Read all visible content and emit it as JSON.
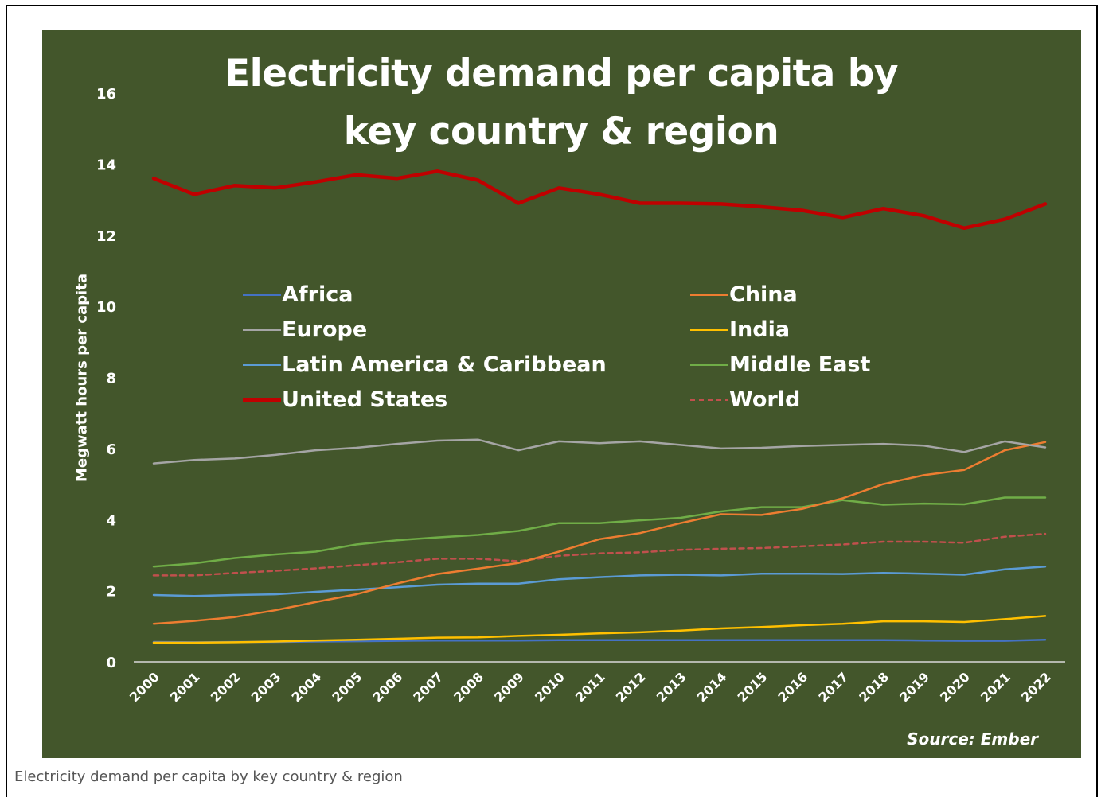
{
  "caption": "Electricity demand per capita by key country & region",
  "chart_data": {
    "type": "line",
    "title": "Electricity demand per capita by key country & region",
    "ylabel": "Megwatt hours per capita",
    "xlabel": "",
    "source": "Source: Ember",
    "ylim": [
      0,
      16
    ],
    "yticks": [
      0,
      2,
      4,
      6,
      8,
      10,
      12,
      14,
      16
    ],
    "grid": false,
    "legend_position": "upper-middle, two columns",
    "background_color": "#43562b",
    "x": [
      "2000",
      "2001",
      "2002",
      "2003",
      "2004",
      "2005",
      "2006",
      "2007",
      "2008",
      "2009",
      "2010",
      "2011",
      "2012",
      "2013",
      "2014",
      "2015",
      "2016",
      "2017",
      "2018",
      "2019",
      "2020",
      "2021",
      "2022"
    ],
    "series": [
      {
        "name": "Africa",
        "color": "#4472c4",
        "dashed": false,
        "values": [
          0.56,
          0.55,
          0.56,
          0.56,
          0.57,
          0.58,
          0.59,
          0.6,
          0.6,
          0.6,
          0.61,
          0.61,
          0.61,
          0.61,
          0.61,
          0.61,
          0.61,
          0.61,
          0.61,
          0.6,
          0.59,
          0.59,
          0.62
        ]
      },
      {
        "name": "China",
        "color": "#ed7d31",
        "dashed": false,
        "values": [
          1.07,
          1.15,
          1.26,
          1.45,
          1.68,
          1.9,
          2.2,
          2.47,
          2.62,
          2.78,
          3.1,
          3.45,
          3.62,
          3.9,
          4.15,
          4.13,
          4.3,
          4.6,
          5.0,
          5.25,
          5.4,
          5.95,
          6.18
        ]
      },
      {
        "name": "Europe",
        "color": "#a5a5a5",
        "dashed": false,
        "values": [
          5.58,
          5.68,
          5.72,
          5.82,
          5.95,
          6.02,
          6.13,
          6.22,
          6.25,
          5.95,
          6.2,
          6.15,
          6.2,
          6.1,
          6.0,
          6.02,
          6.07,
          6.1,
          6.13,
          6.08,
          5.9,
          6.2,
          6.03
        ]
      },
      {
        "name": "India",
        "color": "#ffc000",
        "dashed": false,
        "values": [
          0.54,
          0.54,
          0.55,
          0.57,
          0.6,
          0.62,
          0.65,
          0.68,
          0.69,
          0.73,
          0.76,
          0.8,
          0.83,
          0.88,
          0.94,
          0.98,
          1.03,
          1.07,
          1.14,
          1.14,
          1.12,
          1.2,
          1.29
        ]
      },
      {
        "name": "Latin America & Caribbean",
        "color": "#5b9bd5",
        "dashed": false,
        "values": [
          1.88,
          1.85,
          1.88,
          1.9,
          1.97,
          2.03,
          2.1,
          2.17,
          2.2,
          2.2,
          2.32,
          2.38,
          2.43,
          2.45,
          2.43,
          2.48,
          2.48,
          2.47,
          2.5,
          2.48,
          2.45,
          2.6,
          2.68
        ]
      },
      {
        "name": "Middle East",
        "color": "#70ad47",
        "dashed": false,
        "values": [
          2.68,
          2.77,
          2.92,
          3.02,
          3.1,
          3.3,
          3.42,
          3.5,
          3.57,
          3.68,
          3.9,
          3.9,
          3.98,
          4.05,
          4.23,
          4.35,
          4.35,
          4.55,
          4.42,
          4.45,
          4.43,
          4.62,
          4.62
        ]
      },
      {
        "name": "United States",
        "color": "#c00000",
        "dashed": false,
        "values": [
          13.6,
          13.15,
          13.4,
          13.33,
          13.5,
          13.7,
          13.6,
          13.8,
          13.55,
          12.9,
          13.33,
          13.15,
          12.9,
          12.9,
          12.88,
          12.8,
          12.7,
          12.5,
          12.75,
          12.55,
          12.2,
          12.45,
          12.88
        ]
      },
      {
        "name": "World",
        "color": "#c0504d",
        "dashed": true,
        "values": [
          2.43,
          2.43,
          2.5,
          2.56,
          2.63,
          2.72,
          2.8,
          2.9,
          2.9,
          2.83,
          2.98,
          3.05,
          3.08,
          3.15,
          3.18,
          3.2,
          3.25,
          3.3,
          3.38,
          3.38,
          3.35,
          3.52,
          3.6
        ]
      }
    ]
  }
}
